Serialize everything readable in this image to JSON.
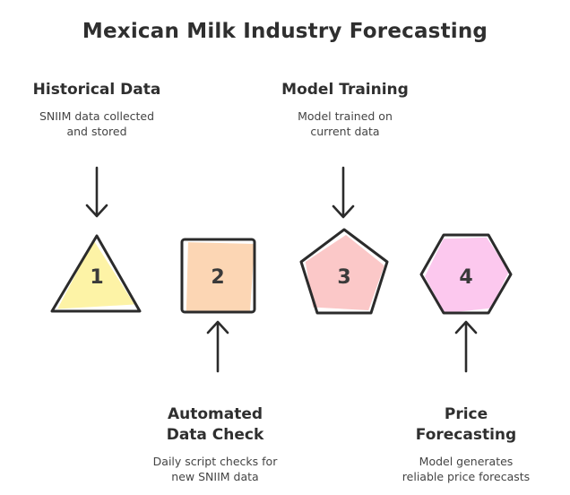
{
  "title": "Mexican Milk Industry Forecasting",
  "steps": [
    {
      "number": "1",
      "heading": "Historical Data",
      "description": [
        "SNIIM data collected",
        "and stored"
      ],
      "fill": "#fdf3a6",
      "arrow": "down-from-top"
    },
    {
      "number": "2",
      "heading": [
        "Automated",
        "Data Check"
      ],
      "description": [
        "Daily script checks for",
        "new SNIIM data"
      ],
      "fill": "#fcd6b4",
      "arrow": "up-from-bottom"
    },
    {
      "number": "3",
      "heading": "Model Training",
      "description": [
        "Model trained on",
        "current data"
      ],
      "fill": "#fbc8c8",
      "arrow": "down-from-top"
    },
    {
      "number": "4",
      "heading": [
        "Price",
        "Forecasting"
      ],
      "description": [
        "Model generates",
        "reliable price forecasts"
      ],
      "fill": "#fcc8ee",
      "arrow": "up-from-bottom"
    }
  ],
  "colors": {
    "stroke": "#2b2b2b",
    "text": "#2f2f2f"
  }
}
